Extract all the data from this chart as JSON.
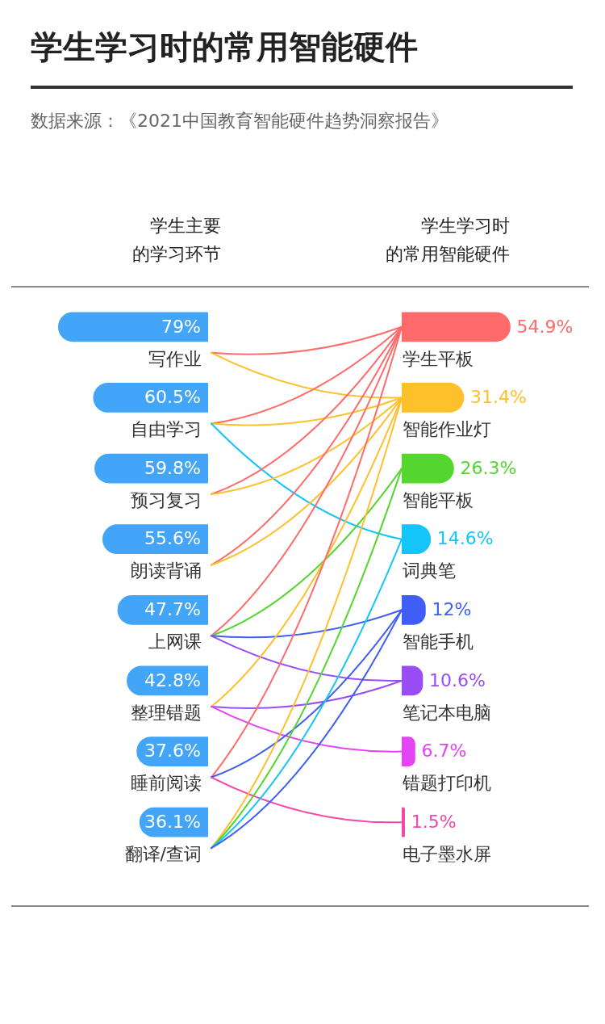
{
  "chart_data": [
    {
      "type": "other",
      "title": "学生学习时的常用智能硬件",
      "annotations": [
        "数据来源：《2021中国教育智能硬件趋势洞察报告》"
      ]
    },
    {
      "type": "bar",
      "orientation": "horizontal",
      "title": "学生主要的学习环节",
      "categories": [
        "写作业",
        "自由学习",
        "预习复习",
        "朗读背诵",
        "上网课",
        "整理错题",
        "睡前阅读",
        "翻译/查词"
      ],
      "values": [
        79,
        60.5,
        59.8,
        55.6,
        47.7,
        42.8,
        37.6,
        36.1
      ],
      "value_labels": [
        "79%",
        "60.5%",
        "59.8%",
        "55.6%",
        "47.7%",
        "42.8%",
        "37.6%",
        "36.1%"
      ],
      "color": "#42a5f7",
      "tick_labels": "y"
    },
    {
      "type": "bar",
      "orientation": "horizontal",
      "title": "学生学习时的常用智能硬件",
      "categories": [
        "学生平板",
        "智能作业灯",
        "智能平板",
        "词典笔",
        "智能手机",
        "笔记本电脑",
        "错题打印机",
        "电子墨水屏"
      ],
      "values": [
        54.9,
        31.4,
        26.3,
        14.6,
        12,
        10.6,
        6.7,
        1.5
      ],
      "value_labels": [
        "54.9%",
        "31.4%",
        "26.3%",
        "14.6%",
        "12%",
        "10.6%",
        "6.7%",
        "1.5%"
      ],
      "colors": [
        "#ff6b6b",
        "#fec02b",
        "#55d62f",
        "#15c4f8",
        "#3f5ef5",
        "#9a4cf6",
        "#e344f4",
        "#f646a8"
      ],
      "tick_labels": "y"
    }
  ]
}
